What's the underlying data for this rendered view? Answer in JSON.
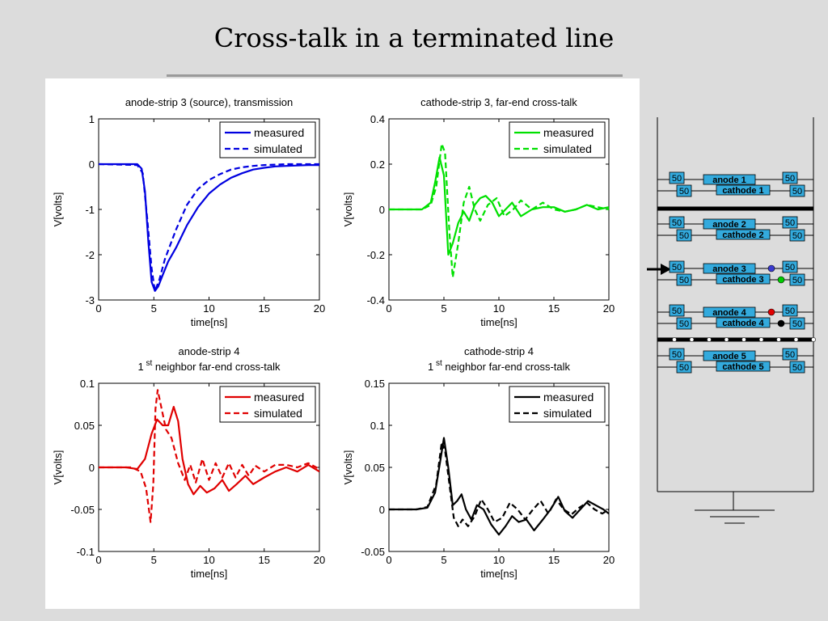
{
  "slide": {
    "title": "Cross-talk in a terminated line"
  },
  "colors": {
    "background": "#dcdcdc",
    "figure_bg": "#ffffff",
    "blue": "#0000e0",
    "green": "#00e000",
    "red": "#e00000",
    "black": "#000000",
    "schematic_box": "#33aadd"
  },
  "chart_data": [
    {
      "type": "line",
      "title_lines": [
        "anode-strip 3 (source), transmission"
      ],
      "xlabel": "time[ns]",
      "ylabel": "V[volts]",
      "xlim": [
        0,
        20
      ],
      "ylim": [
        -3,
        1
      ],
      "xticks": [
        0,
        5,
        10,
        15,
        20
      ],
      "yticks": [
        -3,
        -2,
        -1,
        0,
        1
      ],
      "yticklabels": [
        "-3",
        "-2",
        "-1",
        "0",
        "1"
      ],
      "grid": false,
      "legend": "top-right",
      "color": "#0000e0",
      "series": [
        {
          "name": "measured",
          "style": "solid",
          "x": [
            0,
            3.5,
            3.9,
            4.2,
            4.5,
            4.8,
            5.1,
            5.4,
            5.8,
            6.3,
            7,
            8,
            9,
            10,
            11,
            12,
            13,
            14,
            15,
            16,
            17,
            18,
            19,
            20
          ],
          "y": [
            0,
            0,
            -0.1,
            -0.6,
            -1.7,
            -2.6,
            -2.8,
            -2.7,
            -2.45,
            -2.15,
            -1.85,
            -1.35,
            -0.95,
            -0.65,
            -0.45,
            -0.3,
            -0.2,
            -0.12,
            -0.08,
            -0.05,
            -0.04,
            -0.03,
            -0.02,
            -0.02
          ]
        },
        {
          "name": "simulated",
          "style": "dashed",
          "x": [
            0,
            3.5,
            4,
            4.4,
            4.8,
            5.1,
            5.5,
            6,
            7,
            8,
            9,
            10,
            11,
            12,
            13,
            14,
            15,
            16,
            17,
            18,
            19,
            20
          ],
          "y": [
            0,
            -0.02,
            -0.2,
            -1.2,
            -2.3,
            -2.8,
            -2.55,
            -2.1,
            -1.45,
            -0.9,
            -0.55,
            -0.35,
            -0.22,
            -0.12,
            -0.07,
            -0.04,
            -0.02,
            -0.01,
            0,
            0,
            0,
            0
          ]
        }
      ]
    },
    {
      "type": "line",
      "title_lines": [
        "cathode-strip 3, far-end cross-talk"
      ],
      "xlabel": "time[ns]",
      "ylabel": "V[volts]",
      "xlim": [
        0,
        20
      ],
      "ylim": [
        -0.4,
        0.4
      ],
      "xticks": [
        0,
        5,
        10,
        15,
        20
      ],
      "yticks": [
        -0.4,
        -0.2,
        0,
        0.2,
        0.4
      ],
      "yticklabels": [
        "-0.4",
        "-0.2",
        "0",
        "0.2",
        "0.4"
      ],
      "grid": false,
      "legend": "top-right",
      "color": "#00e000",
      "series": [
        {
          "name": "measured",
          "style": "solid",
          "x": [
            0,
            3,
            3.8,
            4.2,
            4.6,
            5,
            5.4,
            5.8,
            6.3,
            6.8,
            7.3,
            7.8,
            8.3,
            8.8,
            9.4,
            10,
            10.6,
            11.2,
            12,
            13,
            14,
            15,
            16,
            17,
            18,
            19,
            20
          ],
          "y": [
            0,
            0,
            0.03,
            0.12,
            0.23,
            0.15,
            -0.2,
            -0.15,
            -0.06,
            -0.01,
            -0.05,
            0.02,
            0.05,
            0.06,
            0.03,
            -0.03,
            0.0,
            0.03,
            -0.03,
            0.0,
            0.01,
            0.01,
            -0.01,
            0.0,
            0.02,
            0.0,
            0.01
          ]
        },
        {
          "name": "simulated",
          "style": "dashed",
          "x": [
            0,
            3,
            3.8,
            4.3,
            4.8,
            5.1,
            5.5,
            5.8,
            6.3,
            6.8,
            7.3,
            7.8,
            8.3,
            9,
            9.8,
            10.5,
            11.3,
            12,
            13,
            14,
            15,
            16,
            17,
            18,
            19,
            20
          ],
          "y": [
            0,
            0,
            0.02,
            0.1,
            0.29,
            0.25,
            -0.1,
            -0.3,
            -0.15,
            0.03,
            0.1,
            0.0,
            -0.05,
            0.02,
            0.05,
            -0.03,
            0.0,
            0.04,
            0.0,
            0.03,
            0.0,
            -0.01,
            0.0,
            0.02,
            0.01,
            0.0
          ]
        }
      ]
    },
    {
      "type": "line",
      "title_lines": [
        "anode-strip 4",
        "1| st| neighbor far-end cross-talk"
      ],
      "xlabel": "time[ns]",
      "ylabel": "V[volts]",
      "xlim": [
        0,
        20
      ],
      "ylim": [
        -0.1,
        0.1
      ],
      "xticks": [
        0,
        5,
        10,
        15,
        20
      ],
      "yticks": [
        -0.1,
        -0.05,
        0,
        0.05,
        0.1
      ],
      "yticklabels": [
        "-0.1",
        "-0.05",
        "0",
        "0.05",
        "0.1"
      ],
      "grid": false,
      "legend": "top-right",
      "color": "#e00000",
      "series": [
        {
          "name": "measured",
          "style": "solid",
          "x": [
            0,
            2.5,
            3.5,
            4.2,
            4.8,
            5.3,
            5.8,
            6.3,
            6.8,
            7.2,
            7.6,
            8.1,
            8.6,
            9.2,
            9.8,
            10.5,
            11.2,
            11.8,
            12.5,
            13.3,
            14,
            15,
            16,
            17,
            18,
            19,
            20
          ],
          "y": [
            0,
            0,
            -0.002,
            0.01,
            0.04,
            0.057,
            0.05,
            0.05,
            0.072,
            0.055,
            0.01,
            -0.02,
            -0.032,
            -0.022,
            -0.03,
            -0.025,
            -0.015,
            -0.028,
            -0.02,
            -0.01,
            -0.02,
            -0.012,
            -0.005,
            0.0,
            -0.005,
            0.003,
            -0.005
          ]
        },
        {
          "name": "simulated",
          "style": "dashed",
          "x": [
            0,
            3,
            3.8,
            4.3,
            4.7,
            4.95,
            5.15,
            5.35,
            5.7,
            6.1,
            6.6,
            7.2,
            7.8,
            8.3,
            8.8,
            9.4,
            10,
            10.6,
            11.2,
            11.8,
            12.4,
            13,
            13.6,
            14.2,
            15,
            16,
            17,
            18,
            19,
            20
          ],
          "y": [
            0,
            0,
            -0.005,
            -0.025,
            -0.065,
            -0.02,
            0.07,
            0.092,
            0.07,
            0.045,
            0.035,
            0.005,
            -0.015,
            0.003,
            -0.018,
            0.01,
            -0.015,
            0.005,
            -0.012,
            0.005,
            -0.012,
            0.003,
            -0.01,
            0.002,
            -0.005,
            0.003,
            0.003,
            0.0,
            0.005,
            -0.002
          ]
        }
      ]
    },
    {
      "type": "line",
      "title_lines": [
        "cathode-strip 4",
        "1| st| neighbor far-end cross-talk"
      ],
      "xlabel": "time[ns]",
      "ylabel": "V[volts]",
      "xlim": [
        0,
        20
      ],
      "ylim": [
        -0.05,
        0.15
      ],
      "xticks": [
        0,
        5,
        10,
        15,
        20
      ],
      "yticks": [
        -0.05,
        0,
        0.05,
        0.1,
        0.15
      ],
      "yticklabels": [
        "-0.05",
        "0",
        "0.05",
        "0.1",
        "0.15"
      ],
      "grid": false,
      "legend": "top-right",
      "color": "#000000",
      "series": [
        {
          "name": "measured",
          "style": "solid",
          "x": [
            0,
            2.5,
            3.5,
            4.2,
            4.7,
            5,
            5.4,
            5.8,
            6.2,
            6.6,
            7,
            7.5,
            8,
            8.6,
            9.3,
            10,
            10.6,
            11.2,
            11.8,
            12.5,
            13.2,
            14,
            14.7,
            15.4,
            16,
            16.7,
            17.4,
            18.1,
            18.8,
            19.5,
            20
          ],
          "y": [
            0,
            0.0,
            0.002,
            0.02,
            0.06,
            0.085,
            0.05,
            0.005,
            0.01,
            0.018,
            0.0,
            -0.012,
            0.005,
            0.0,
            -0.018,
            -0.03,
            -0.02,
            -0.008,
            -0.015,
            -0.012,
            -0.025,
            -0.012,
            0.0,
            0.015,
            -0.002,
            -0.01,
            0.0,
            0.01,
            0.005,
            0.0,
            -0.005
          ]
        },
        {
          "name": "simulated",
          "style": "dashed",
          "x": [
            0,
            2.5,
            3.5,
            4.3,
            4.8,
            5.1,
            5.5,
            5.9,
            6.3,
            6.7,
            7.2,
            7.8,
            8.4,
            9,
            9.6,
            10.3,
            11,
            11.7,
            12.4,
            13.1,
            13.8,
            14.5,
            15.2,
            15.9,
            16.6,
            17.3,
            18,
            18.7,
            19.4,
            20
          ],
          "y": [
            0,
            0.0,
            0.003,
            0.03,
            0.08,
            0.07,
            0.03,
            -0.01,
            -0.02,
            -0.012,
            -0.02,
            -0.008,
            0.012,
            0.0,
            -0.015,
            -0.01,
            0.008,
            0.0,
            -0.012,
            0.0,
            0.01,
            -0.005,
            0.012,
            0.0,
            -0.006,
            0.002,
            0.008,
            0.0,
            -0.005,
            0.0
          ]
        }
      ]
    }
  ],
  "schematic": {
    "groups": [
      {
        "anode": "anode 1",
        "cathode": "cathode 1"
      },
      {
        "anode": "anode 2",
        "cathode": "cathode 2"
      },
      {
        "anode": "anode 3",
        "cathode": "cathode 3"
      },
      {
        "anode": "anode 4",
        "cathode": "cathode 4"
      },
      {
        "anode": "anode 5",
        "cathode": "cathode 5"
      }
    ],
    "resistor_label": "50"
  }
}
